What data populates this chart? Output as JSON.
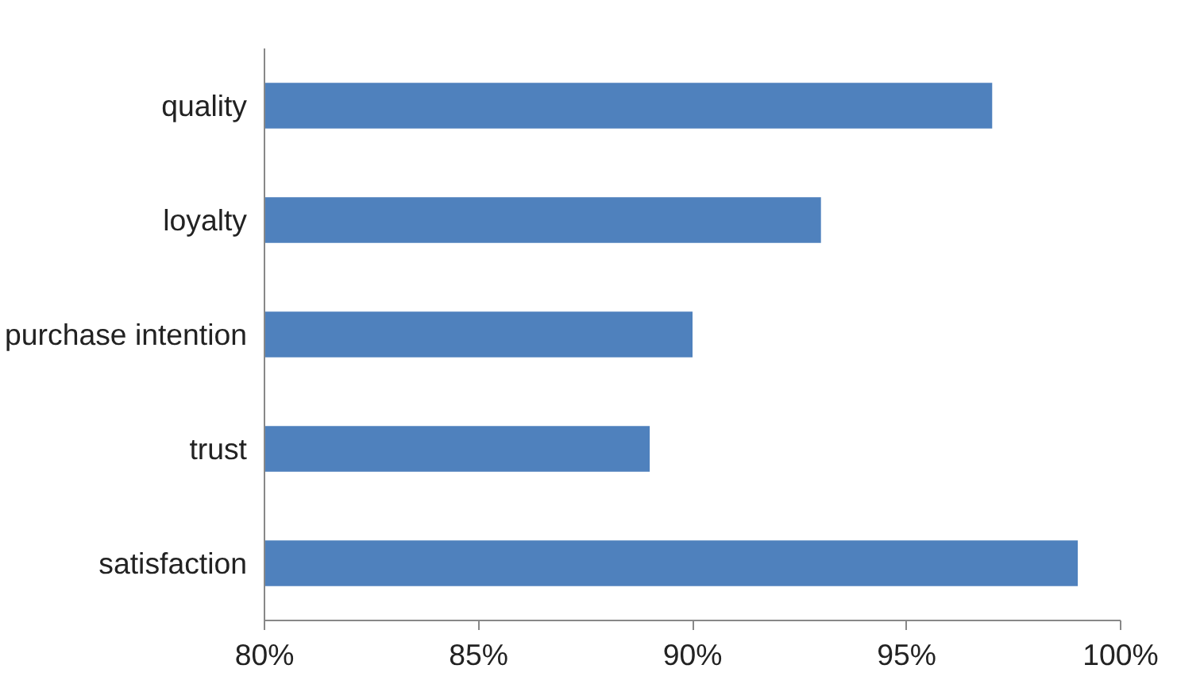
{
  "chart_data": {
    "type": "bar",
    "orientation": "horizontal",
    "categories": [
      "quality",
      "loyalty",
      "purchase intention",
      "trust",
      "satisfaction"
    ],
    "values": [
      97,
      93,
      90,
      89,
      99
    ],
    "color": "#4f81bd",
    "xlim": [
      80,
      100
    ],
    "xticks": [
      {
        "value": 80,
        "label": "80%"
      },
      {
        "value": 85,
        "label": "85%"
      },
      {
        "value": 90,
        "label": "90%"
      },
      {
        "value": 95,
        "label": "95%"
      },
      {
        "value": 100,
        "label": "100%"
      }
    ],
    "grid": false
  }
}
